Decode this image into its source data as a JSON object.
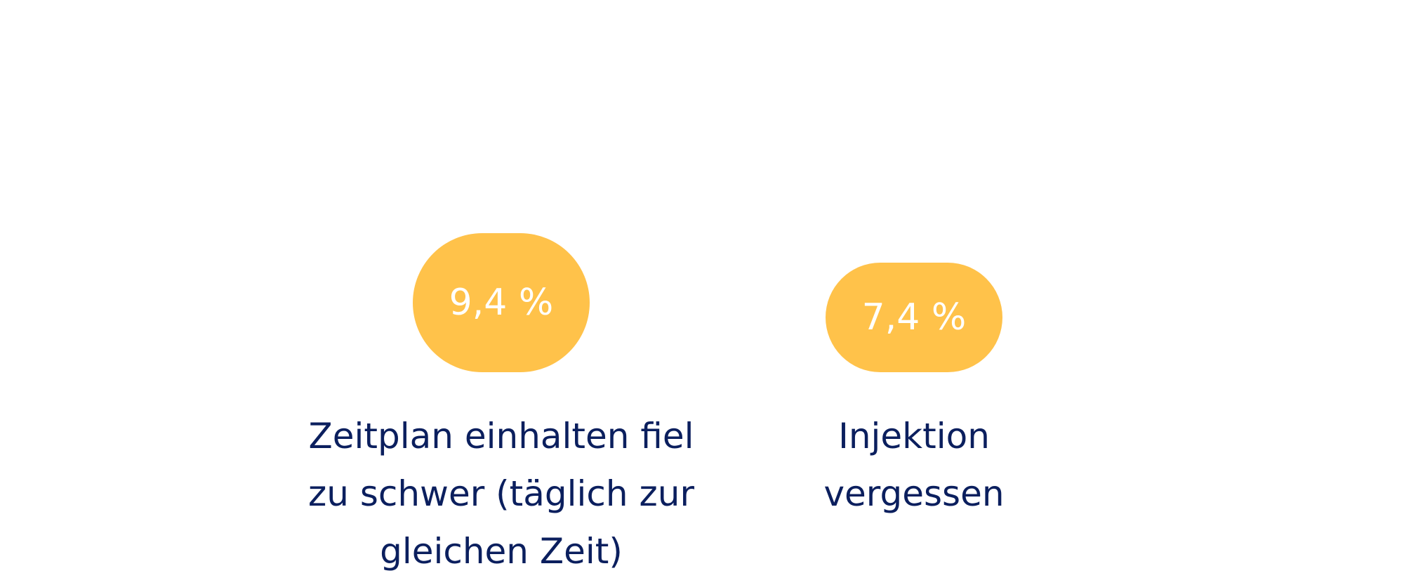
{
  "chart_data": {
    "type": "bar",
    "categories": [
      "Zeitplan einhalten fiel zu schwer (täglich zur gleichen Zeit)",
      "Injektion vergessen"
    ],
    "values": [
      9.4,
      7.4
    ],
    "value_labels": [
      "9,4 %",
      "7,4 %"
    ],
    "unit": "%",
    "title": "",
    "xlabel": "",
    "ylabel": "",
    "ylim": [
      0,
      30
    ],
    "grid": false,
    "legend": "none",
    "colors": {
      "bar": "#FFC24A",
      "value_text": "#FFFFFF",
      "category_text": "#0B1F5E"
    }
  }
}
